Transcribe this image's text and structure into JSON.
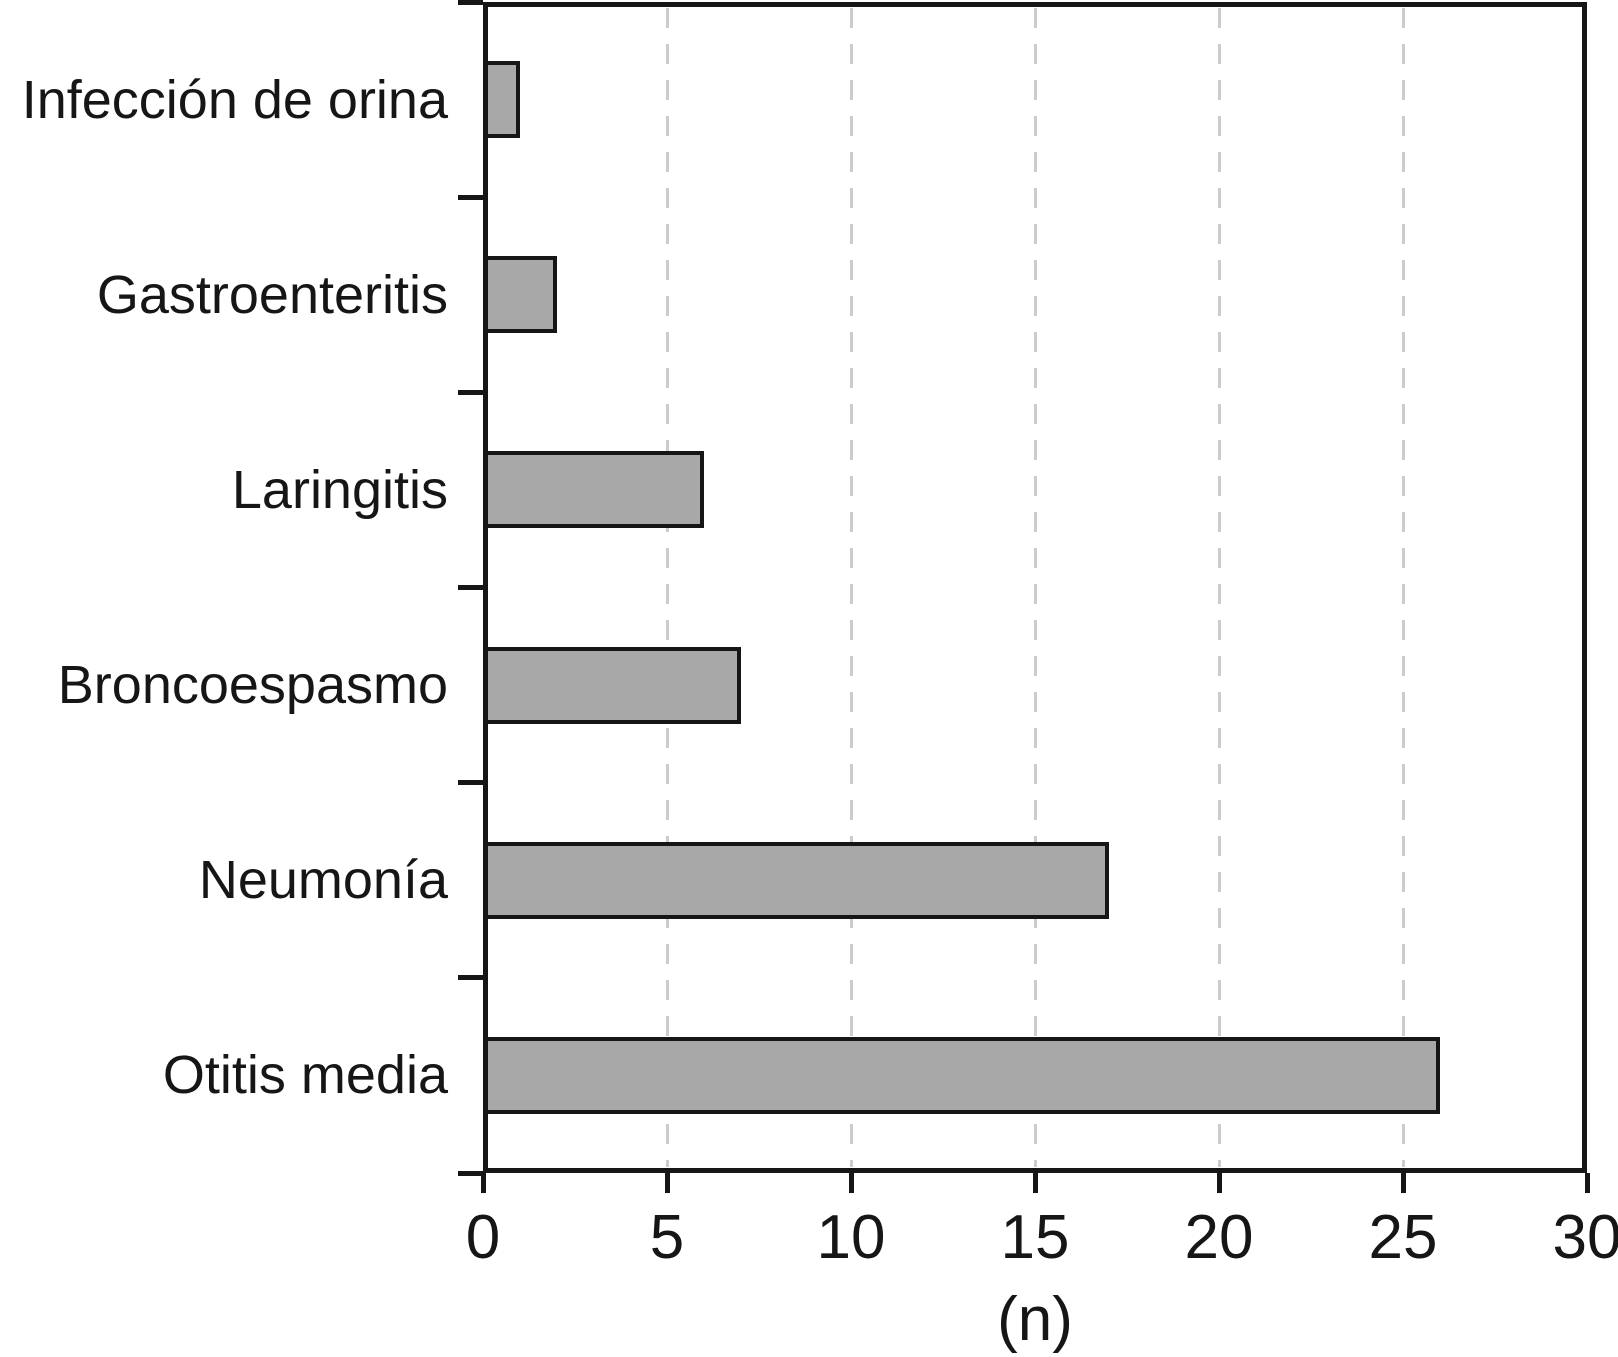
{
  "chart_data": {
    "type": "bar",
    "orientation": "horizontal",
    "title": "",
    "categories": [
      "Infección de orina",
      "Gastroenteritis",
      "Laringitis",
      "Broncoespasmo",
      "Neumonía",
      "Otitis media"
    ],
    "values": [
      1,
      2,
      6,
      7,
      17,
      26
    ],
    "xlabel": "(n)",
    "xlim": [
      0,
      30
    ],
    "xticks": [
      0,
      5,
      10,
      15,
      20,
      25,
      30
    ],
    "legend": "none",
    "grid": "vertical dashed gridlines at each x tick",
    "colors": {
      "bar_fill": "#a8a8a8",
      "bar_border": "#161616",
      "axis": "#161616",
      "gridline": "#cccccc",
      "background": "#ffffff"
    }
  }
}
